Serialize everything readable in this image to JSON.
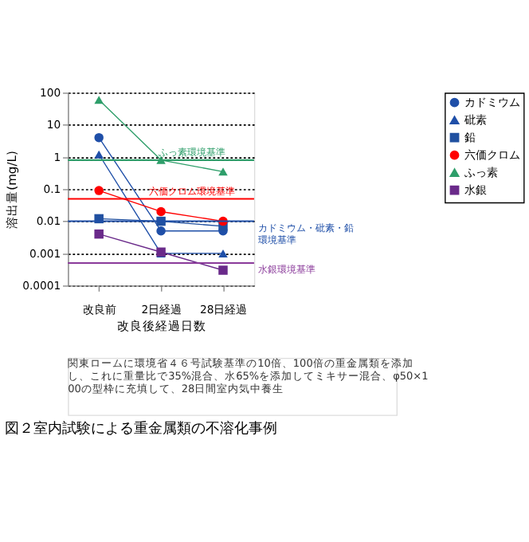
{
  "chart_data": {
    "type": "line",
    "title": "図２室内試験による重金属類の不溶化事例",
    "xlabel": "改良後経過日数",
    "ylabel": "溶出量(mg/L)",
    "categories": [
      "改良前",
      "2日経過",
      "28日経過"
    ],
    "series": [
      {
        "name": "カドミウム",
        "color": "#1f4fa8",
        "marker": "circle",
        "values": [
          4,
          0.005,
          0.005
        ]
      },
      {
        "name": "砒素",
        "color": "#1f4fa8",
        "marker": "triangle",
        "values": [
          1.2,
          0.001,
          0.001
        ]
      },
      {
        "name": "鉛",
        "color": "#2050a0",
        "marker": "square",
        "values": [
          0.012,
          0.01,
          0.007
        ]
      },
      {
        "name": "六価クロム",
        "color": "#ff0000",
        "marker": "circle",
        "values": [
          0.09,
          0.02,
          0.01
        ]
      },
      {
        "name": "ふっ素",
        "color": "#2e9e6a",
        "marker": "triangle",
        "values": [
          60,
          0.8,
          0.35
        ]
      },
      {
        "name": "水銀",
        "color": "#6a2a8a",
        "marker": "square",
        "values": [
          0.004,
          0.0011,
          0.0003
        ]
      }
    ],
    "log": true,
    "ylim": [
      0.0001,
      100
    ],
    "yticks": [
      100,
      10,
      1,
      0.1,
      0.01,
      0.001,
      0.0001
    ],
    "grid": "y",
    "legend": "top right",
    "ref_lines": [
      {
        "axis": "y",
        "value": 0.8,
        "label": "ふっ素環境基準",
        "color": "#2e9e6a"
      },
      {
        "axis": "y",
        "value": 0.05,
        "label": "六価クロム環境基準",
        "color": "#ff0000"
      },
      {
        "axis": "y",
        "value": 0.01,
        "label": "カドミウム・砒素・鉛環境基準",
        "color": "#1f4fa8"
      },
      {
        "axis": "y",
        "value": 0.0005,
        "label": "水銀環境基準",
        "color": "#8a3a9a"
      }
    ],
    "annotations": [
      "関東ロームに環境省４６号試験基準の10倍、100倍の重金属類を添加し、これに重量比で35%混合、水65%を添加してミキサー混合、φ50×100の型枠に充填して、28日間室内気中養生"
    ]
  }
}
